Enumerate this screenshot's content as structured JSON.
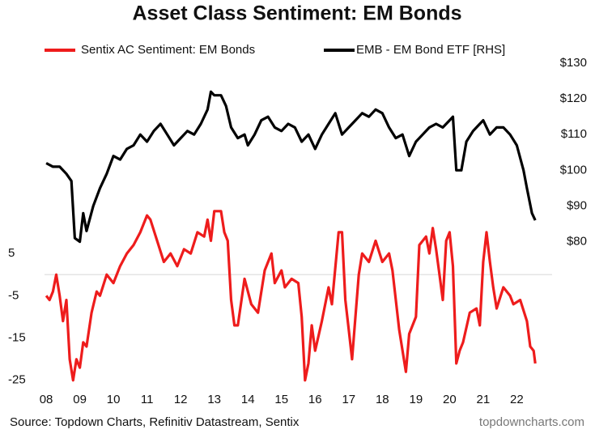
{
  "chart_data": {
    "type": "line",
    "title": "Asset Class Sentiment: EM Bonds",
    "source": "Source: Topdown Charts, Refinitiv Datastream, Sentix",
    "watermark": "topdowncharts.com",
    "xlim": [
      2007.95,
      2023.05
    ],
    "xticks": [
      {
        "value": 2008,
        "label": "08"
      },
      {
        "value": 2009,
        "label": "09"
      },
      {
        "value": 2010,
        "label": "10"
      },
      {
        "value": 2011,
        "label": "11"
      },
      {
        "value": 2012,
        "label": "12"
      },
      {
        "value": 2013,
        "label": "13"
      },
      {
        "value": 2014,
        "label": "14"
      },
      {
        "value": 2015,
        "label": "15"
      },
      {
        "value": 2016,
        "label": "16"
      },
      {
        "value": 2017,
        "label": "17"
      },
      {
        "value": 2018,
        "label": "18"
      },
      {
        "value": 2019,
        "label": "19"
      },
      {
        "value": 2020,
        "label": "20"
      },
      {
        "value": 2021,
        "label": "21"
      },
      {
        "value": 2022,
        "label": "22"
      }
    ],
    "ylim": [
      -26,
      50
    ],
    "yticks": [
      5,
      -5,
      -15,
      -25
    ],
    "y2lim": [
      40,
      130
    ],
    "y2ticks": [
      {
        "value": 130,
        "label": "$130"
      },
      {
        "value": 120,
        "label": "$120"
      },
      {
        "value": 110,
        "label": "$110"
      },
      {
        "value": 100,
        "label": "$100"
      },
      {
        "value": 90,
        "label": "$90"
      },
      {
        "value": 80,
        "label": "$80"
      }
    ],
    "series": [
      {
        "name": "Sentix AC Sentiment: EM Bonds",
        "color": "#ee1c1c",
        "axis": "y",
        "x": [
          2008.0,
          2008.1,
          2008.2,
          2008.3,
          2008.4,
          2008.5,
          2008.6,
          2008.7,
          2008.8,
          2008.9,
          2009.0,
          2009.1,
          2009.2,
          2009.35,
          2009.5,
          2009.6,
          2009.8,
          2010.0,
          2010.2,
          2010.4,
          2010.6,
          2010.8,
          2011.0,
          2011.1,
          2011.3,
          2011.5,
          2011.7,
          2011.9,
          2012.1,
          2012.3,
          2012.5,
          2012.7,
          2012.8,
          2012.9,
          2013.0,
          2013.2,
          2013.3,
          2013.4,
          2013.5,
          2013.6,
          2013.7,
          2013.9,
          2014.1,
          2014.3,
          2014.5,
          2014.7,
          2014.8,
          2015.0,
          2015.1,
          2015.3,
          2015.5,
          2015.6,
          2015.7,
          2015.8,
          2015.9,
          2016.0,
          2016.2,
          2016.4,
          2016.5,
          2016.7,
          2016.8,
          2016.9,
          2017.0,
          2017.1,
          2017.3,
          2017.4,
          2017.6,
          2017.8,
          2018.0,
          2018.2,
          2018.3,
          2018.5,
          2018.7,
          2018.8,
          2019.0,
          2019.1,
          2019.3,
          2019.4,
          2019.5,
          2019.6,
          2019.7,
          2019.8,
          2019.9,
          2020.0,
          2020.1,
          2020.2,
          2020.3,
          2020.4,
          2020.6,
          2020.8,
          2020.9,
          2021.0,
          2021.1,
          2021.2,
          2021.3,
          2021.4,
          2021.6,
          2021.8,
          2021.9,
          2022.1,
          2022.3,
          2022.4,
          2022.5,
          2022.55
        ],
        "values": [
          -5,
          -6,
          -4,
          0,
          -5,
          -11,
          -6,
          -20,
          -25,
          -20,
          -22,
          -16,
          -17,
          -9,
          -4,
          -5,
          0,
          -2,
          2,
          5,
          7,
          10,
          14,
          13,
          8,
          3,
          5,
          2,
          6,
          5,
          10,
          9,
          13,
          8,
          15,
          15,
          10,
          8,
          -6,
          -12,
          -12,
          -1,
          -7,
          -9,
          1,
          5,
          -2,
          1,
          -3,
          -1,
          -2,
          -10,
          -25,
          -21,
          -12,
          -18,
          -11,
          -3,
          -7,
          10,
          10,
          -6,
          -13,
          -20,
          0,
          5,
          3,
          8,
          3,
          5,
          1,
          -13,
          -23,
          -14,
          -10,
          7,
          9,
          5,
          11,
          6,
          0,
          -6,
          8,
          10,
          2,
          -21,
          -18,
          -16,
          -9,
          -8,
          -12,
          3,
          10,
          3,
          -3,
          -8,
          -3,
          -5,
          -7,
          -6,
          -11,
          -17,
          -18,
          -21
        ]
      },
      {
        "name": "EMB - EM Bond ETF [RHS]",
        "color": "#000000",
        "axis": "y2",
        "x": [
          2008.0,
          2008.2,
          2008.4,
          2008.6,
          2008.75,
          2008.85,
          2009.0,
          2009.1,
          2009.2,
          2009.4,
          2009.6,
          2009.8,
          2010.0,
          2010.2,
          2010.4,
          2010.6,
          2010.8,
          2011.0,
          2011.2,
          2011.4,
          2011.6,
          2011.8,
          2012.0,
          2012.2,
          2012.4,
          2012.6,
          2012.8,
          2012.9,
          2013.0,
          2013.2,
          2013.35,
          2013.5,
          2013.7,
          2013.9,
          2014.0,
          2014.2,
          2014.4,
          2014.6,
          2014.8,
          2015.0,
          2015.2,
          2015.4,
          2015.6,
          2015.8,
          2016.0,
          2016.2,
          2016.4,
          2016.6,
          2016.8,
          2017.0,
          2017.2,
          2017.4,
          2017.6,
          2017.8,
          2018.0,
          2018.2,
          2018.4,
          2018.6,
          2018.8,
          2019.0,
          2019.2,
          2019.4,
          2019.6,
          2019.8,
          2020.0,
          2020.1,
          2020.2,
          2020.35,
          2020.5,
          2020.7,
          2020.9,
          2021.0,
          2021.2,
          2021.4,
          2021.6,
          2021.8,
          2022.0,
          2022.2,
          2022.3,
          2022.45,
          2022.55
        ],
        "values": [
          102,
          101,
          101,
          99,
          97,
          81,
          80,
          88,
          83,
          90,
          95,
          99,
          104,
          103,
          106,
          107,
          110,
          108,
          111,
          113,
          110,
          107,
          109,
          111,
          110,
          113,
          117,
          122,
          121,
          121,
          118,
          112,
          109,
          110,
          107,
          110,
          114,
          115,
          112,
          111,
          113,
          112,
          108,
          110,
          106,
          110,
          113,
          116,
          110,
          112,
          114,
          116,
          115,
          117,
          116,
          112,
          109,
          110,
          104,
          108,
          110,
          112,
          113,
          112,
          114,
          115,
          100,
          100,
          108,
          111,
          113,
          114,
          110,
          112,
          112,
          110,
          107,
          100,
          95,
          88,
          86
        ]
      }
    ]
  }
}
